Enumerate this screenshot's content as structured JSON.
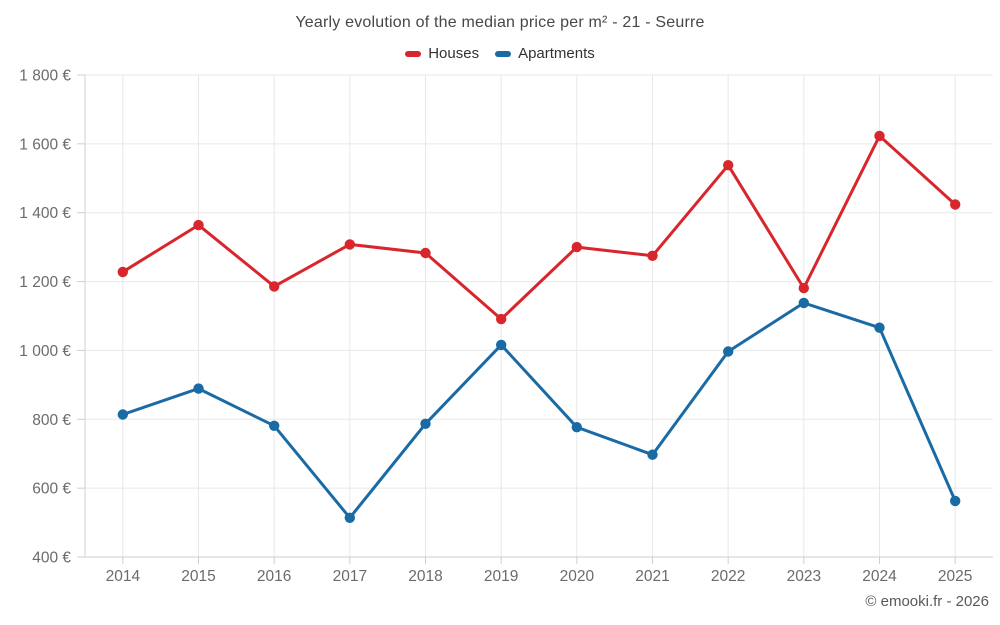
{
  "chart_data": {
    "type": "line",
    "title": "Yearly evolution of the median price per m² - 21 - Seurre",
    "footer": "© emooki.fr - 2026",
    "categories": [
      "2014",
      "2015",
      "2016",
      "2017",
      "2018",
      "2019",
      "2020",
      "2021",
      "2022",
      "2023",
      "2024",
      "2025"
    ],
    "series": [
      {
        "name": "Houses",
        "color": "#d8262c",
        "values": [
          1228,
          1364,
          1186,
          1308,
          1283,
          1091,
          1300,
          1275,
          1538,
          1181,
          1623,
          1424
        ]
      },
      {
        "name": "Apartments",
        "color": "#1a6ba5",
        "values": [
          814,
          889,
          781,
          514,
          787,
          1016,
          777,
          697,
          997,
          1138,
          1066,
          563
        ]
      }
    ],
    "xlabel": "",
    "ylabel": "",
    "ylim": [
      400,
      1800
    ],
    "ytick_step": 200,
    "yticks": [
      400,
      600,
      800,
      1000,
      1200,
      1400,
      1600,
      1800
    ],
    "ytick_labels": [
      "400 €",
      "600 €",
      "800 €",
      "1 000 €",
      "1 200 €",
      "1 400 €",
      "1 600 €",
      "1 800 €"
    ],
    "currency_suffix": " €",
    "grid": true,
    "legend_position": "top",
    "colors": {
      "grid": "#e8e8e8",
      "axis": "#cfcfcf",
      "axis_label": "#6b6b6b",
      "title": "#474747",
      "footer": "#595959"
    }
  }
}
